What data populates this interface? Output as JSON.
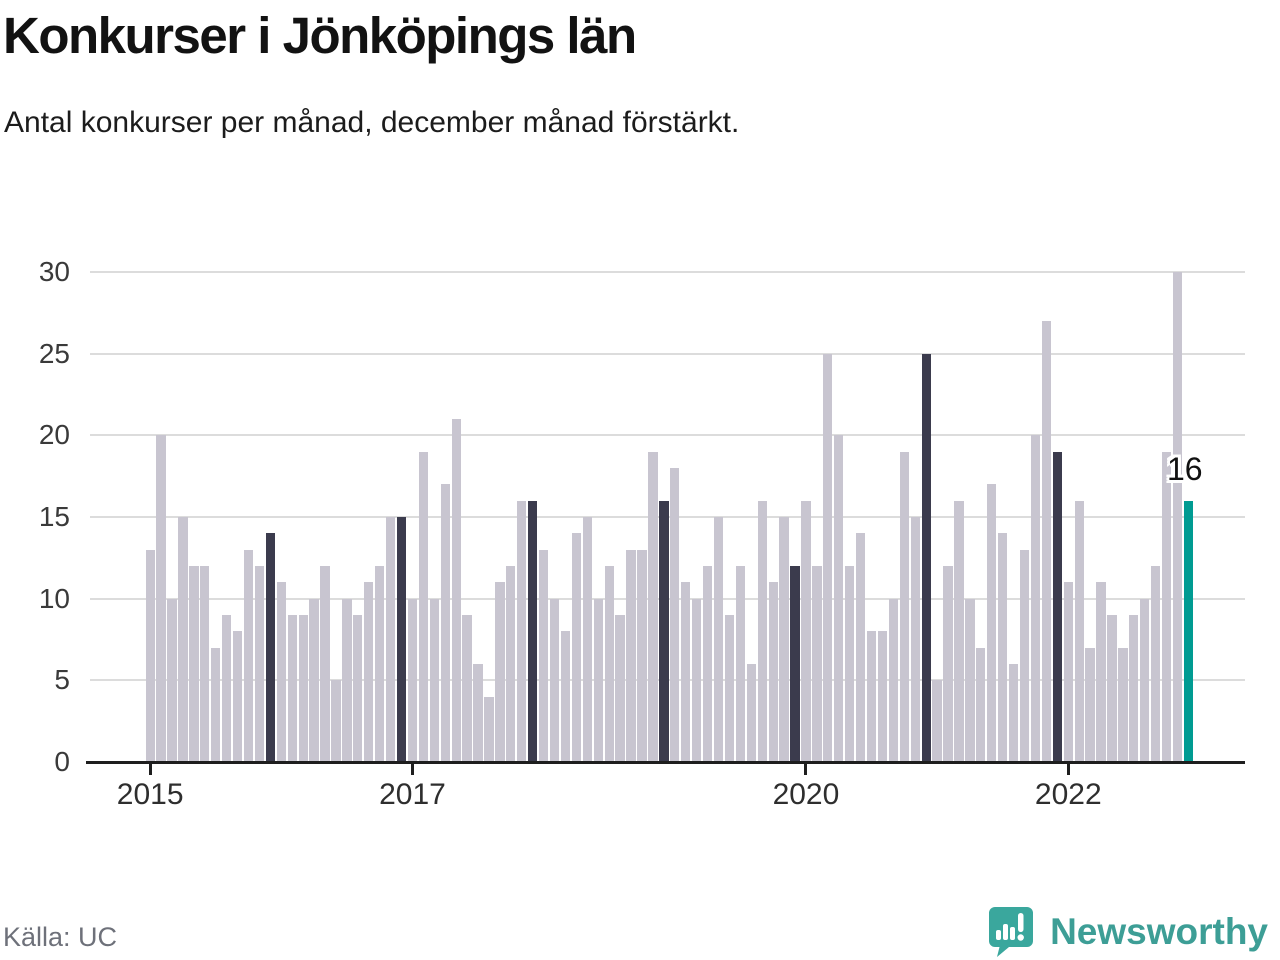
{
  "chart_data": {
    "type": "bar",
    "title": "Konkurser i Jönköpings län",
    "subtitle": "Antal konkurser per månad, december månad förstärkt.",
    "ylabel": "",
    "xlabel": "",
    "ylim": [
      0,
      30
    ],
    "yticks": [
      0,
      5,
      10,
      15,
      20,
      25,
      30
    ],
    "grid": "horizontal",
    "legend": "none",
    "x_unit": "month",
    "xticks": [
      {
        "label": "2015",
        "month_index": 0
      },
      {
        "label": "2017",
        "month_index": 24
      },
      {
        "label": "2020",
        "month_index": 60
      },
      {
        "label": "2022",
        "month_index": 84
      }
    ],
    "series": [
      {
        "year": 2015,
        "values": [
          13,
          20,
          10,
          15,
          12,
          12,
          7,
          9,
          8,
          13,
          12,
          14
        ]
      },
      {
        "year": 2016,
        "values": [
          11,
          9,
          9,
          10,
          12,
          5,
          10,
          9,
          11,
          12,
          15,
          15
        ]
      },
      {
        "year": 2017,
        "values": [
          10,
          19,
          10,
          17,
          21,
          9,
          6,
          4,
          11,
          12,
          16,
          16
        ]
      },
      {
        "year": 2018,
        "values": [
          13,
          10,
          8,
          14,
          15,
          10,
          12,
          9,
          13,
          13,
          19,
          16
        ]
      },
      {
        "year": 2019,
        "values": [
          18,
          11,
          10,
          12,
          15,
          9,
          12,
          6,
          16,
          11,
          15,
          12
        ]
      },
      {
        "year": 2020,
        "values": [
          16,
          12,
          25,
          20,
          12,
          14,
          8,
          8,
          10,
          19,
          15,
          25
        ]
      },
      {
        "year": 2021,
        "values": [
          5,
          12,
          16,
          10,
          7,
          17,
          14,
          6,
          13,
          20,
          27,
          19
        ]
      },
      {
        "year": 2022,
        "values": [
          11,
          16,
          7,
          11,
          9,
          7,
          9,
          10,
          12,
          19,
          30,
          16
        ]
      }
    ],
    "december_emphasis": true,
    "latest_annotation": {
      "label": "16",
      "value": 16
    },
    "colors": {
      "bar_default": "#c8c5d0",
      "bar_december": "#3b3b4d",
      "bar_latest": "#009b92",
      "gridline": "#dcdcdc",
      "axis": "#1e1e1e"
    }
  },
  "footer": {
    "source": "Källa: UC",
    "brand": "Newsworthy"
  }
}
